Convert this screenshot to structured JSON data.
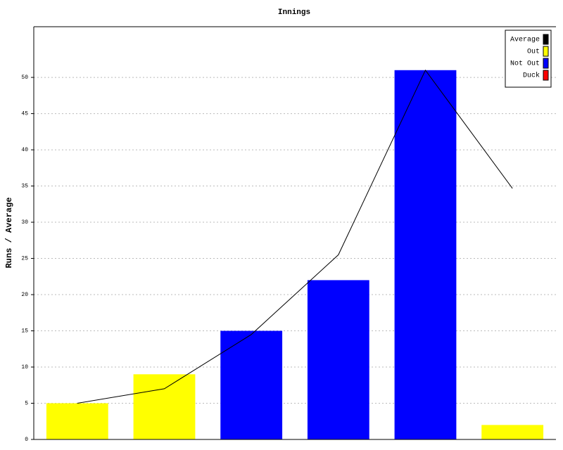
{
  "chart_data": {
    "type": "bar",
    "title": "Innings",
    "y_label": "Runs / Average",
    "categories": [
      null,
      null,
      null,
      null,
      null,
      null
    ],
    "series": [
      {
        "name": "Average",
        "type": "line",
        "color": "#000000",
        "values": [
          5,
          7,
          14.5,
          25.5,
          51,
          34.67
        ]
      },
      {
        "name": "Out",
        "color": "#ffff00",
        "values": [
          5,
          9,
          null,
          null,
          null,
          2
        ]
      },
      {
        "name": "Not Out",
        "color": "#0000ff",
        "values": [
          null,
          null,
          15,
          22,
          51,
          null
        ]
      },
      {
        "name": "Duck",
        "color": "#ff0000",
        "values": [
          null,
          null,
          null,
          null,
          null,
          null
        ]
      }
    ],
    "ylim": [
      0,
      57
    ],
    "yticks": [
      0,
      5,
      10,
      15,
      20,
      25,
      30,
      35,
      40,
      45,
      50
    ],
    "grid": true,
    "legend": "upper right"
  }
}
